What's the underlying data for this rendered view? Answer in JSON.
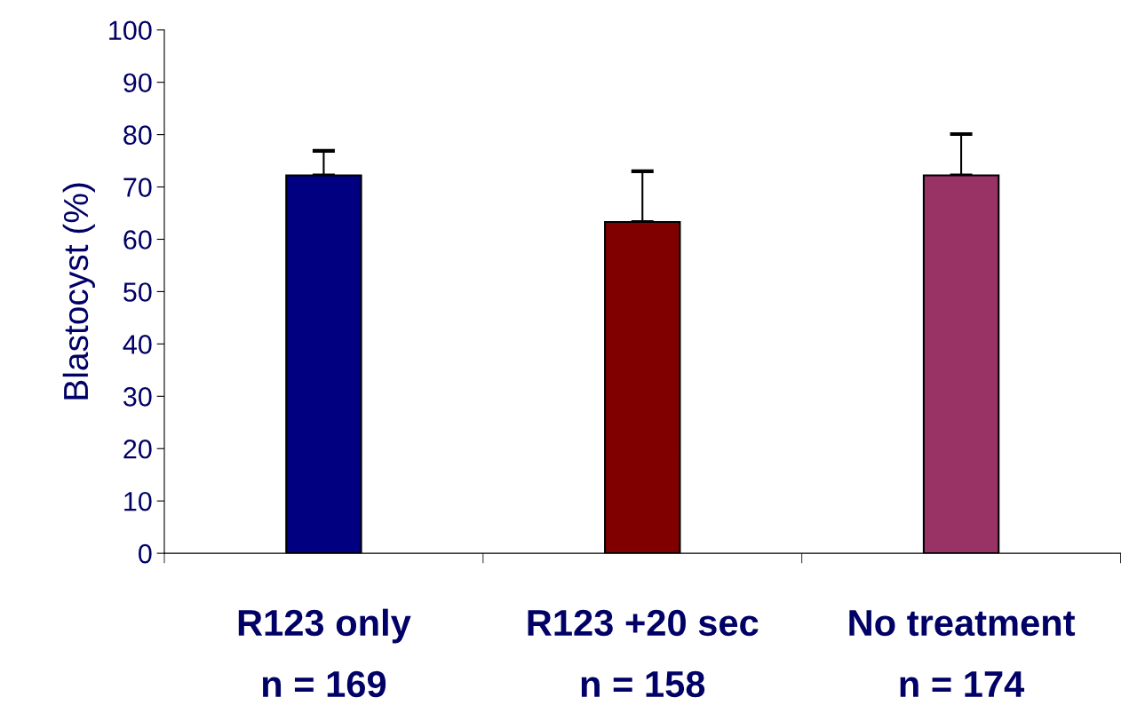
{
  "chart_data": {
    "type": "bar",
    "categories": [
      "R123 only\nn = 169",
      "R123 +20 sec\nn = 158",
      "No treatment\nn = 174"
    ],
    "values": [
      72.2,
      63.3,
      72.2
    ],
    "colors": [
      "#000080",
      "#800000",
      "#993366"
    ],
    "errors": [
      [
        72.2,
        76.9
      ],
      [
        63.3,
        73.0
      ],
      [
        72.2,
        80.1
      ]
    ],
    "ylabel": "Blastocyst (%)",
    "ylim": [
      0,
      100
    ],
    "yticks": [
      0,
      10,
      20,
      30,
      40,
      50,
      60,
      70,
      80,
      90,
      100
    ],
    "grid": false,
    "legend": false
  }
}
